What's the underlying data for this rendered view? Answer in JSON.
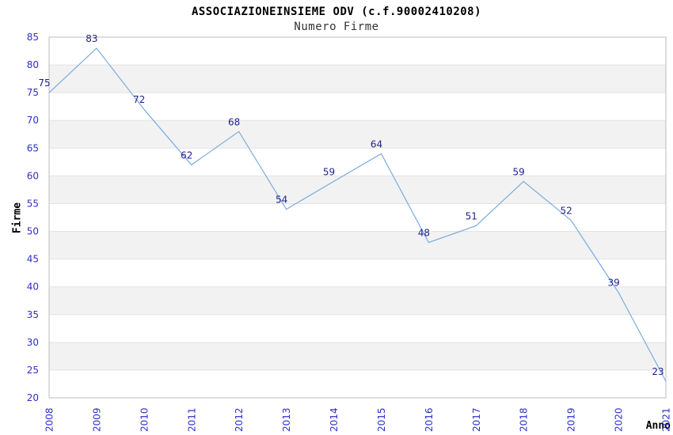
{
  "chart_data": {
    "type": "line",
    "title": "ASSOCIAZIONEINSIEME ODV (c.f.90002410208)",
    "subtitle": "Numero Firme",
    "xlabel": "Anno",
    "ylabel": "Firme",
    "categories": [
      "2008",
      "2009",
      "2010",
      "2011",
      "2012",
      "2013",
      "2014",
      "2015",
      "2016",
      "2017",
      "2018",
      "2019",
      "2020",
      "2021"
    ],
    "values": [
      75,
      83,
      72,
      62,
      68,
      54,
      59,
      64,
      48,
      51,
      59,
      52,
      39,
      23
    ],
    "ylim": [
      20,
      85
    ],
    "ytick_step": 5,
    "grid": "horizontal",
    "alternating_bands": true,
    "legend": "none",
    "point_labels_shown": true,
    "colors": {
      "line": "#7AACDF",
      "tick_label": "#2E2ECC",
      "data_label": "#1F1F8F",
      "band": "#F2F2F2",
      "gridline": "#E3E3E3",
      "border": "#BDBDBD",
      "background": "#FFFFFF"
    }
  }
}
